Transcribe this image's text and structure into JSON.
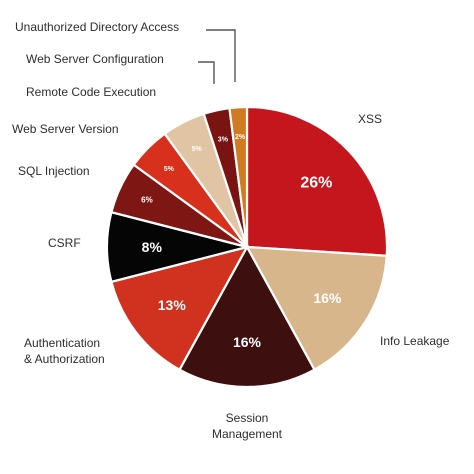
{
  "chart_data": {
    "type": "pie",
    "title": "",
    "slices": [
      {
        "name": "XSS",
        "value": 26,
        "label": "26%",
        "color": "#c4161c"
      },
      {
        "name": "Info Leakage",
        "value": 16,
        "label": "16%",
        "color": "#d8b68c"
      },
      {
        "name": "Session Management",
        "value": 16,
        "label": "16%",
        "color": "#3d0f0e"
      },
      {
        "name": "Authentication & Authorization",
        "value": 13,
        "label": "13%",
        "color": "#d0321f"
      },
      {
        "name": "CSRF",
        "value": 8,
        "label": "8%",
        "color": "#050505"
      },
      {
        "name": "SQL Injection",
        "value": 6,
        "label": "6%",
        "color": "#7e1713"
      },
      {
        "name": "Web Server Version",
        "value": 5,
        "label": "5%",
        "color": "#d7301d"
      },
      {
        "name": "Remote Code Execution",
        "value": 5,
        "label": "5%",
        "color": "#e0c4a4"
      },
      {
        "name": "Web Server Configuration",
        "value": 3,
        "label": "3%",
        "color": "#7a1412"
      },
      {
        "name": "Unauthorized Directory Access",
        "value": 2,
        "label": "2%",
        "color": "#d07a21"
      }
    ]
  }
}
